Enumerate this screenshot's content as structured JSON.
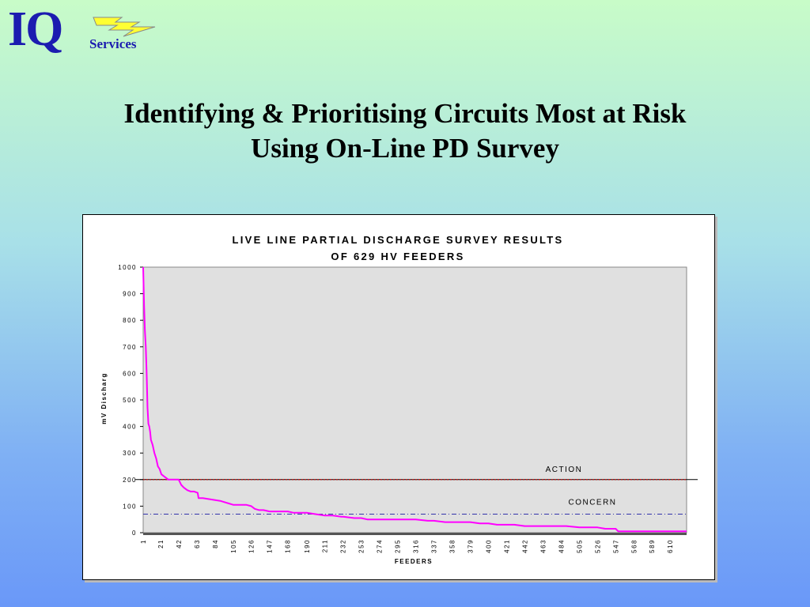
{
  "logo": {
    "letters": "IQ",
    "subtitle": "Services"
  },
  "slide": {
    "title_line1": "Identifying & Prioritising Circuits Most at Risk",
    "title_line2": "Using On-Line PD Survey"
  },
  "chart_data": {
    "type": "line",
    "title_lines": [
      "LIVE LINE PARTIAL DISCHARGE SURVEY RESULTS",
      "OF 629 HV FEEDERS"
    ],
    "xlabel": "FEEDERS",
    "ylabel": "mV Discharg",
    "xlim": [
      1,
      629
    ],
    "ylim": [
      0,
      1000
    ],
    "y_ticks": [
      0,
      100,
      200,
      300,
      400,
      500,
      600,
      700,
      800,
      900,
      1000
    ],
    "x_tick_labels": [
      "1",
      "21",
      "42",
      "63",
      "84",
      "105",
      "126",
      "147",
      "168",
      "190",
      "211",
      "232",
      "253",
      "274",
      "295",
      "316",
      "337",
      "358",
      "379",
      "400",
      "421",
      "442",
      "463",
      "484",
      "505",
      "526",
      "547",
      "568",
      "589",
      "610"
    ],
    "grid": false,
    "series": [
      {
        "color": "#ff00ff",
        "x": [
          1,
          2,
          3,
          4,
          5,
          6,
          7,
          8,
          9,
          10,
          12,
          14,
          16,
          18,
          20,
          22,
          24,
          26,
          28,
          30,
          32,
          35,
          38,
          42,
          45,
          48,
          52,
          56,
          60,
          64,
          65,
          70,
          80,
          90,
          100,
          105,
          110,
          115,
          120,
          126,
          130,
          135,
          140,
          147,
          155,
          160,
          168,
          175,
          180,
          190,
          200,
          211,
          220,
          230,
          232,
          245,
          253,
          260,
          274,
          285,
          295,
          305,
          316,
          330,
          337,
          350,
          358,
          370,
          379,
          390,
          400,
          410,
          421,
          430,
          442,
          450,
          463,
          475,
          484,
          490,
          505,
          515,
          526,
          535,
          540,
          547,
          550,
          568,
          589,
          610,
          629
        ],
        "y": [
          1000,
          860,
          760,
          700,
          600,
          470,
          410,
          400,
          380,
          350,
          330,
          300,
          280,
          250,
          240,
          220,
          215,
          210,
          205,
          200,
          200,
          200,
          200,
          200,
          180,
          170,
          160,
          155,
          155,
          150,
          130,
          130,
          125,
          120,
          110,
          105,
          105,
          105,
          105,
          100,
          90,
          85,
          85,
          80,
          80,
          80,
          80,
          75,
          75,
          75,
          70,
          65,
          65,
          60,
          60,
          55,
          55,
          50,
          50,
          50,
          50,
          50,
          50,
          45,
          45,
          40,
          40,
          40,
          40,
          35,
          35,
          30,
          30,
          30,
          25,
          25,
          25,
          25,
          25,
          25,
          20,
          20,
          20,
          15,
          15,
          15,
          5,
          5,
          5,
          5,
          5
        ]
      }
    ],
    "reference_lines": [
      {
        "label": "ACTION",
        "value": 200,
        "color": "#cc0000"
      },
      {
        "label": "CONCERN",
        "value": 70,
        "color": "#3333aa"
      }
    ],
    "plot_background": "#e0e0e0"
  }
}
